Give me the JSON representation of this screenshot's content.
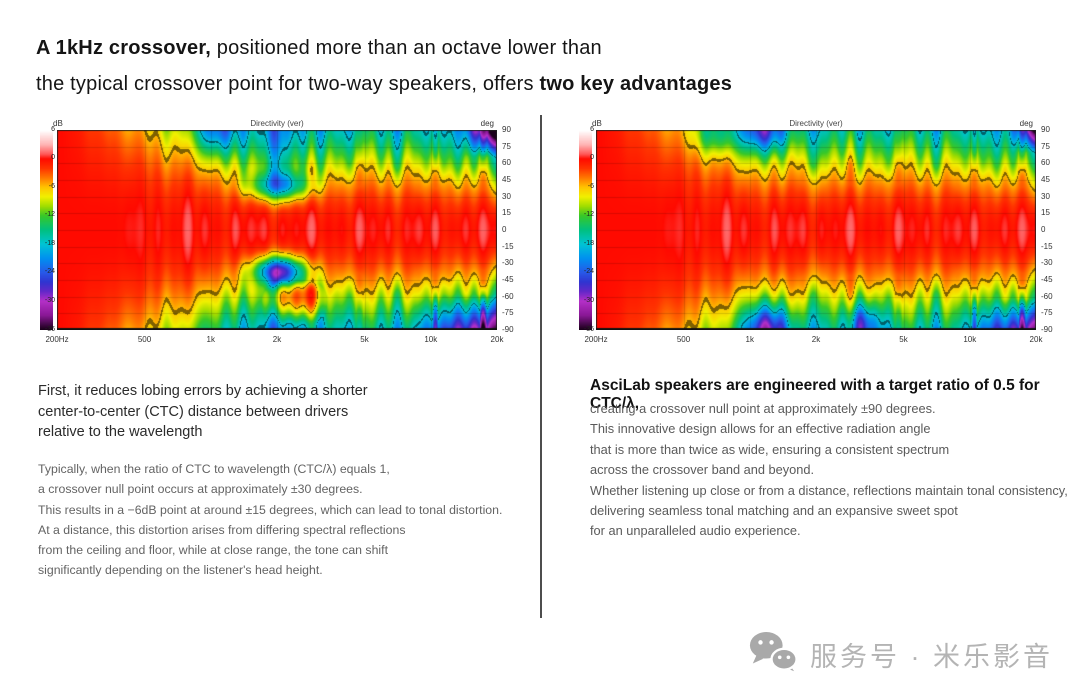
{
  "title": {
    "line1_bold": "A 1kHz crossover,",
    "line1_rest": " positioned more than an octave lower than",
    "line2_rest": "the typical crossover point for two-way speakers, offers ",
    "line2_bold": "two key advantages"
  },
  "left_column": {
    "heading_lines": [
      "First, it reduces lobing errors by achieving a shorter",
      "center-to-center (CTC) distance between drivers",
      "relative to the wavelength"
    ],
    "body_lines": [
      "Typically, when the ratio of CTC to wavelength (CTC/λ) equals 1,",
      "a crossover null point occurs at approximately ±30 degrees.",
      "This results in a −6dB point at around ±15 degrees, which can lead to tonal distortion.",
      "At a distance, this distortion arises from differing spectral reflections",
      "from the ceiling and floor, while at close range, the tone can shift",
      "significantly depending on the listener's head height."
    ]
  },
  "right_column": {
    "heading": "AsciLab speakers are engineered with a target ratio of 0.5 for CTC/λ,",
    "body_lines": [
      "creating a crossover null point at approximately ±90 degrees.",
      "This innovative design allows for an effective radiation angle",
      "that is more than twice as wide, ensuring a consistent spectrum",
      "across the crossover band and beyond.",
      "Whether listening up close or from a distance, reflections maintain tonal consistency,",
      "delivering seamless tonal matching and an expansive sweet spot",
      "for an unparalleled audio experience."
    ]
  },
  "watermark": {
    "text": "服务号 · 米乐影音",
    "color": "#b4b4b4"
  },
  "chart_data": [
    {
      "type": "heatmap",
      "title": "Directivity (ver)",
      "summary": "Vertical directivity map of a conventional two-way speaker with a typical (~2 kHz) crossover: lobing nulls appear near ±30–40° around the crossover frequency.",
      "x_axis": {
        "scale": "log",
        "range_hz": [
          200,
          20000
        ],
        "ticks": [
          "200Hz",
          "500",
          "1k",
          "2k",
          "5k",
          "10k",
          "20k"
        ],
        "tick_hz": [
          200,
          500,
          1000,
          2000,
          5000,
          10000,
          20000
        ]
      },
      "y_axis": {
        "label": "deg",
        "range_deg": [
          -90,
          90
        ],
        "ticks": [
          "90",
          "75",
          "60",
          "45",
          "30",
          "15",
          "0",
          "-15",
          "-30",
          "-45",
          "-60",
          "-75",
          "-90"
        ]
      },
      "colorbar": {
        "label": "dB",
        "range_db": [
          6,
          -36
        ],
        "ticks": [
          "6",
          "0",
          "-6",
          "-12",
          "-18",
          "-24",
          "-30",
          "-36"
        ],
        "stops": [
          [
            -36,
            "#1a001a"
          ],
          [
            -33,
            "#8a1896"
          ],
          [
            -30,
            "#b430c8"
          ],
          [
            -28,
            "#6428c8"
          ],
          [
            -26,
            "#3034d0"
          ],
          [
            -24,
            "#2858e8"
          ],
          [
            -21,
            "#0090f0"
          ],
          [
            -18,
            "#00c4d4"
          ],
          [
            -15,
            "#00c080"
          ],
          [
            -12,
            "#38c828"
          ],
          [
            -10,
            "#a0dc00"
          ],
          [
            -8,
            "#f0f000"
          ],
          [
            -6,
            "#ffc400"
          ],
          [
            -4,
            "#ff7800"
          ],
          [
            -2,
            "#ff3400"
          ],
          [
            0,
            "#ff0a00"
          ],
          [
            1,
            "#ff5858"
          ],
          [
            3,
            "#ffb4b4"
          ],
          [
            6,
            "#ffffff"
          ]
        ]
      },
      "model": {
        "bw6_points": [
          [
            200,
            150
          ],
          [
            350,
            120
          ],
          [
            500,
            88
          ],
          [
            700,
            70
          ],
          [
            1000,
            56
          ],
          [
            1400,
            44
          ],
          [
            2000,
            36
          ],
          [
            2700,
            42
          ],
          [
            3500,
            47
          ],
          [
            5000,
            49
          ],
          [
            8000,
            47
          ],
          [
            12000,
            45
          ],
          [
            16000,
            43
          ],
          [
            20000,
            35
          ]
        ],
        "nulls": [
          {
            "f": 2050,
            "angle": 40,
            "depth": 15,
            "sf": 0.09,
            "sa": 9
          },
          {
            "f": 2050,
            "angle": -37,
            "depth": 22,
            "sf": 0.08,
            "sa": 9
          },
          {
            "f": 1050,
            "angle": 90,
            "depth": 9,
            "sf": 0.06,
            "sa": 16
          }
        ],
        "lobes": [
          {
            "f": 2500,
            "angle": -58,
            "peak": -2.5,
            "sa": 15,
            "sf": 0.17
          }
        ],
        "corners": [
          {
            "pos": "tr",
            "lf0": 4.13,
            "lfw": 0.17,
            "a0": 66,
            "aw": 22,
            "depth": 20
          },
          {
            "pos": "br",
            "lf0": 3.85,
            "lfw": 0.45,
            "a0": 58,
            "aw": 30,
            "depth": 13
          }
        ],
        "mottle": {
          "amp": 4.5,
          "deep": 30
        },
        "contours_db": [
          -6,
          -18
        ]
      }
    },
    {
      "type": "heatmap",
      "title": "Directivity (ver)",
      "summary": "Vertical directivity map of an AsciLab speaker with a 1 kHz crossover and CTC/λ = 0.5: the crossover null is pushed out to about ±90°, giving a wide, consistent radiation pattern.",
      "x_axis": {
        "scale": "log",
        "range_hz": [
          200,
          20000
        ],
        "ticks": [
          "200Hz",
          "500",
          "1k",
          "2k",
          "5k",
          "10k",
          "20k"
        ],
        "tick_hz": [
          200,
          500,
          1000,
          2000,
          5000,
          10000,
          20000
        ]
      },
      "y_axis": {
        "label": "deg",
        "range_deg": [
          -90,
          90
        ],
        "ticks": [
          "90",
          "75",
          "60",
          "45",
          "30",
          "15",
          "0",
          "-15",
          "-30",
          "-45",
          "-60",
          "-75",
          "-90"
        ]
      },
      "colorbar": {
        "label": "dB",
        "range_db": [
          6,
          -36
        ],
        "ticks": [
          "6",
          "0",
          "-6",
          "-12",
          "-18",
          "-24",
          "-30",
          "-36"
        ],
        "stops": [
          [
            -36,
            "#1a001a"
          ],
          [
            -33,
            "#8a1896"
          ],
          [
            -30,
            "#b430c8"
          ],
          [
            -28,
            "#6428c8"
          ],
          [
            -26,
            "#3034d0"
          ],
          [
            -24,
            "#2858e8"
          ],
          [
            -21,
            "#0090f0"
          ],
          [
            -18,
            "#00c4d4"
          ],
          [
            -15,
            "#00c080"
          ],
          [
            -12,
            "#38c828"
          ],
          [
            -10,
            "#a0dc00"
          ],
          [
            -8,
            "#f0f000"
          ],
          [
            -6,
            "#ffc400"
          ],
          [
            -4,
            "#ff7800"
          ],
          [
            -2,
            "#ff3400"
          ],
          [
            0,
            "#ff0a00"
          ],
          [
            1,
            "#ff5858"
          ],
          [
            3,
            "#ffb4b4"
          ],
          [
            6,
            "#ffffff"
          ]
        ]
      },
      "model": {
        "bw6_points": [
          [
            200,
            150
          ],
          [
            350,
            122
          ],
          [
            500,
            90
          ],
          [
            700,
            68
          ],
          [
            900,
            57
          ],
          [
            1100,
            51
          ],
          [
            1500,
            52
          ],
          [
            2000,
            48
          ],
          [
            3000,
            49
          ],
          [
            5000,
            51
          ],
          [
            8000,
            48
          ],
          [
            12000,
            46
          ],
          [
            16000,
            45
          ],
          [
            20000,
            38
          ]
        ],
        "nulls": [
          {
            "f": 1150,
            "angle": 90,
            "depth": 12,
            "sf": 0.07,
            "sa": 14
          },
          {
            "f": 1200,
            "angle": -90,
            "depth": 15,
            "sf": 0.07,
            "sa": 16
          },
          {
            "f": 3300,
            "angle": -85,
            "depth": 10,
            "sf": 0.05,
            "sa": 13
          },
          {
            "f": 700,
            "angle": 85,
            "depth": 6,
            "sf": 0.07,
            "sa": 12
          }
        ],
        "lobes": [],
        "corners": [
          {
            "pos": "tr",
            "lf0": 4.18,
            "lfw": 0.13,
            "a0": 70,
            "aw": 20,
            "depth": 18
          },
          {
            "pos": "br",
            "lf0": 3.95,
            "lfw": 0.35,
            "a0": 62,
            "aw": 28,
            "depth": 13
          }
        ],
        "mottle": {
          "amp": 4.5,
          "deep": 30
        },
        "contours_db": [
          -6,
          -18
        ]
      }
    }
  ]
}
